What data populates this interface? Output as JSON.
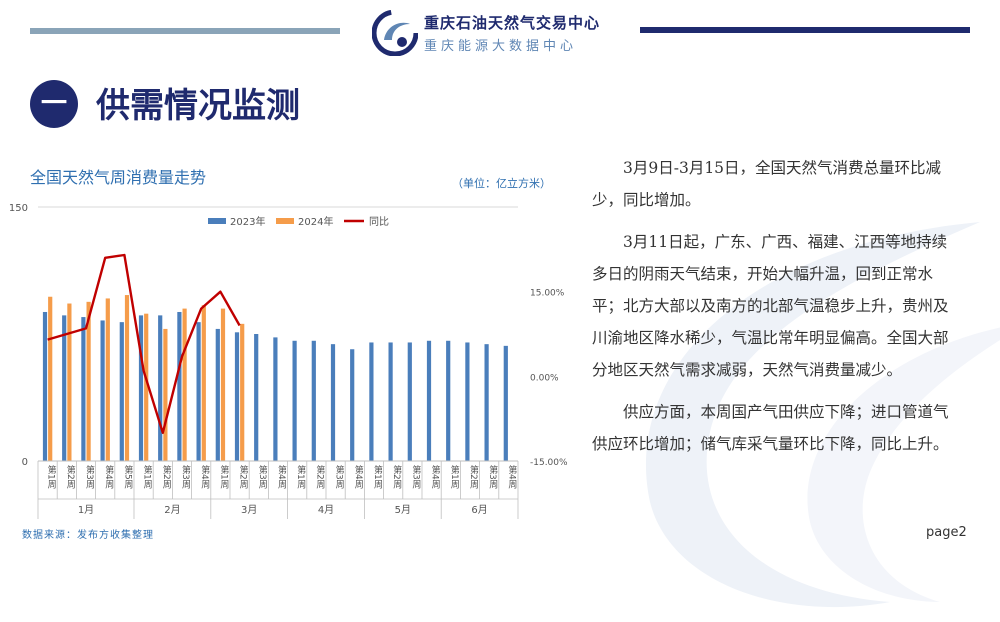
{
  "header": {
    "brand_title": "重庆石油天然气交易中心",
    "brand_subtitle": "重庆能源大数据中心"
  },
  "section": {
    "badge": "一",
    "title": "供需情况监测"
  },
  "chart": {
    "title": "全国天然气周消费量走势",
    "unit": "（单位：亿立方米）",
    "source": "数据来源：发布方收集整理"
  },
  "colors": {
    "series_2023": "#4a7ebb",
    "series_2024": "#f59c4a",
    "series_yoy": "#c00000",
    "brand_navy": "#1f2a6e"
  },
  "chart_data": {
    "type": "bar",
    "categories": [
      "第1周",
      "第2周",
      "第3周",
      "第4周",
      "第5周",
      "第1周",
      "第2周",
      "第3周",
      "第4周",
      "第1周",
      "第2周",
      "第3周",
      "第4周",
      "第1周",
      "第2周",
      "第3周",
      "第4周",
      "第1周",
      "第2周",
      "第3周",
      "第4周",
      "第1周",
      "第2周",
      "第3周",
      "第4周"
    ],
    "month_groups": [
      {
        "label": "1月",
        "count": 5
      },
      {
        "label": "2月",
        "count": 4
      },
      {
        "label": "3月",
        "count": 4
      },
      {
        "label": "4月",
        "count": 4
      },
      {
        "label": "5月",
        "count": 4
      },
      {
        "label": "6月",
        "count": 4
      }
    ],
    "series": [
      {
        "name": "2023年",
        "type": "bar",
        "values": [
          88,
          86,
          85,
          83,
          82,
          86,
          86,
          88,
          82,
          78,
          76,
          75,
          73,
          71,
          71,
          69,
          66,
          70,
          70,
          70,
          71,
          71,
          70,
          69,
          68
        ]
      },
      {
        "name": "2024年",
        "type": "bar",
        "values": [
          97,
          93,
          94,
          96,
          98,
          87,
          78,
          90,
          92,
          90,
          81,
          null,
          null,
          null,
          null,
          null,
          null,
          null,
          null,
          null,
          null,
          null,
          null,
          null,
          null
        ]
      },
      {
        "name": "同比",
        "type": "line",
        "axis": "right",
        "values": [
          6.5,
          7.5,
          8.5,
          21,
          21.5,
          1,
          -10,
          3.5,
          12,
          15,
          9,
          null,
          null,
          null,
          null,
          null,
          null,
          null,
          null,
          null,
          null,
          null,
          null,
          null,
          null
        ]
      }
    ],
    "ylim": [
      0,
      150
    ],
    "y_ticks": [
      "0",
      "150"
    ],
    "y2lim": [
      -15,
      30
    ],
    "y2_ticks": [
      "15.00%",
      "0.00%",
      "-15.00%"
    ],
    "legend": "top",
    "grid": false
  },
  "text": {
    "paragraphs": [
      "3月9日-3月15日，全国天然气消费总量环比减少，同比增加。",
      "3月11日起，广东、广西、福建、江西等地持续多日的阴雨天气结束，开始大幅升温，回到正常水平；北方大部以及南方的北部气温稳步上升，贵州及川渝地区降水稀少，气温比常年明显偏高。全国大部分地区天然气需求减弱，天然气消费量减少。",
      "供应方面，本周国产气田供应下降；进口管道气供应环比增加；储气库采气量环比下降，同比上升。"
    ]
  },
  "footer": {
    "page": "page2"
  }
}
